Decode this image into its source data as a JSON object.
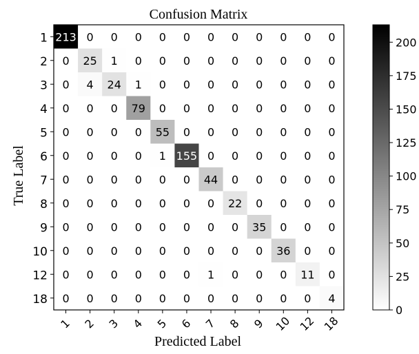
{
  "chart_data": {
    "type": "heatmap",
    "title": "Confusion Matrix",
    "xlabel": "Predicted Label",
    "ylabel": "True Label",
    "x_categories": [
      "1",
      "2",
      "3",
      "4",
      "5",
      "6",
      "7",
      "8",
      "9",
      "10",
      "12",
      "18"
    ],
    "y_categories": [
      "1",
      "2",
      "3",
      "4",
      "5",
      "6",
      "7",
      "8",
      "9",
      "10",
      "12",
      "18"
    ],
    "matrix": [
      [
        213,
        0,
        0,
        0,
        0,
        0,
        0,
        0,
        0,
        0,
        0,
        0
      ],
      [
        0,
        25,
        1,
        0,
        0,
        0,
        0,
        0,
        0,
        0,
        0,
        0
      ],
      [
        0,
        4,
        24,
        1,
        0,
        0,
        0,
        0,
        0,
        0,
        0,
        0
      ],
      [
        0,
        0,
        0,
        79,
        0,
        0,
        0,
        0,
        0,
        0,
        0,
        0
      ],
      [
        0,
        0,
        0,
        0,
        55,
        0,
        0,
        0,
        0,
        0,
        0,
        0
      ],
      [
        0,
        0,
        0,
        0,
        1,
        155,
        0,
        0,
        0,
        0,
        0,
        0
      ],
      [
        0,
        0,
        0,
        0,
        0,
        0,
        44,
        0,
        0,
        0,
        0,
        0
      ],
      [
        0,
        0,
        0,
        0,
        0,
        0,
        0,
        22,
        0,
        0,
        0,
        0
      ],
      [
        0,
        0,
        0,
        0,
        0,
        0,
        0,
        0,
        35,
        0,
        0,
        0
      ],
      [
        0,
        0,
        0,
        0,
        0,
        0,
        0,
        0,
        0,
        36,
        0,
        0
      ],
      [
        0,
        0,
        0,
        0,
        0,
        0,
        1,
        0,
        0,
        0,
        11,
        0
      ],
      [
        0,
        0,
        0,
        0,
        0,
        0,
        0,
        0,
        0,
        0,
        0,
        4
      ]
    ],
    "colorbar": {
      "range": [
        0,
        213
      ],
      "ticks": [
        0,
        25,
        50,
        75,
        100,
        125,
        150,
        175,
        200
      ],
      "cmap": "Greys",
      "low_color": "#ffffff",
      "high_color": "#000000"
    },
    "grid": false
  }
}
